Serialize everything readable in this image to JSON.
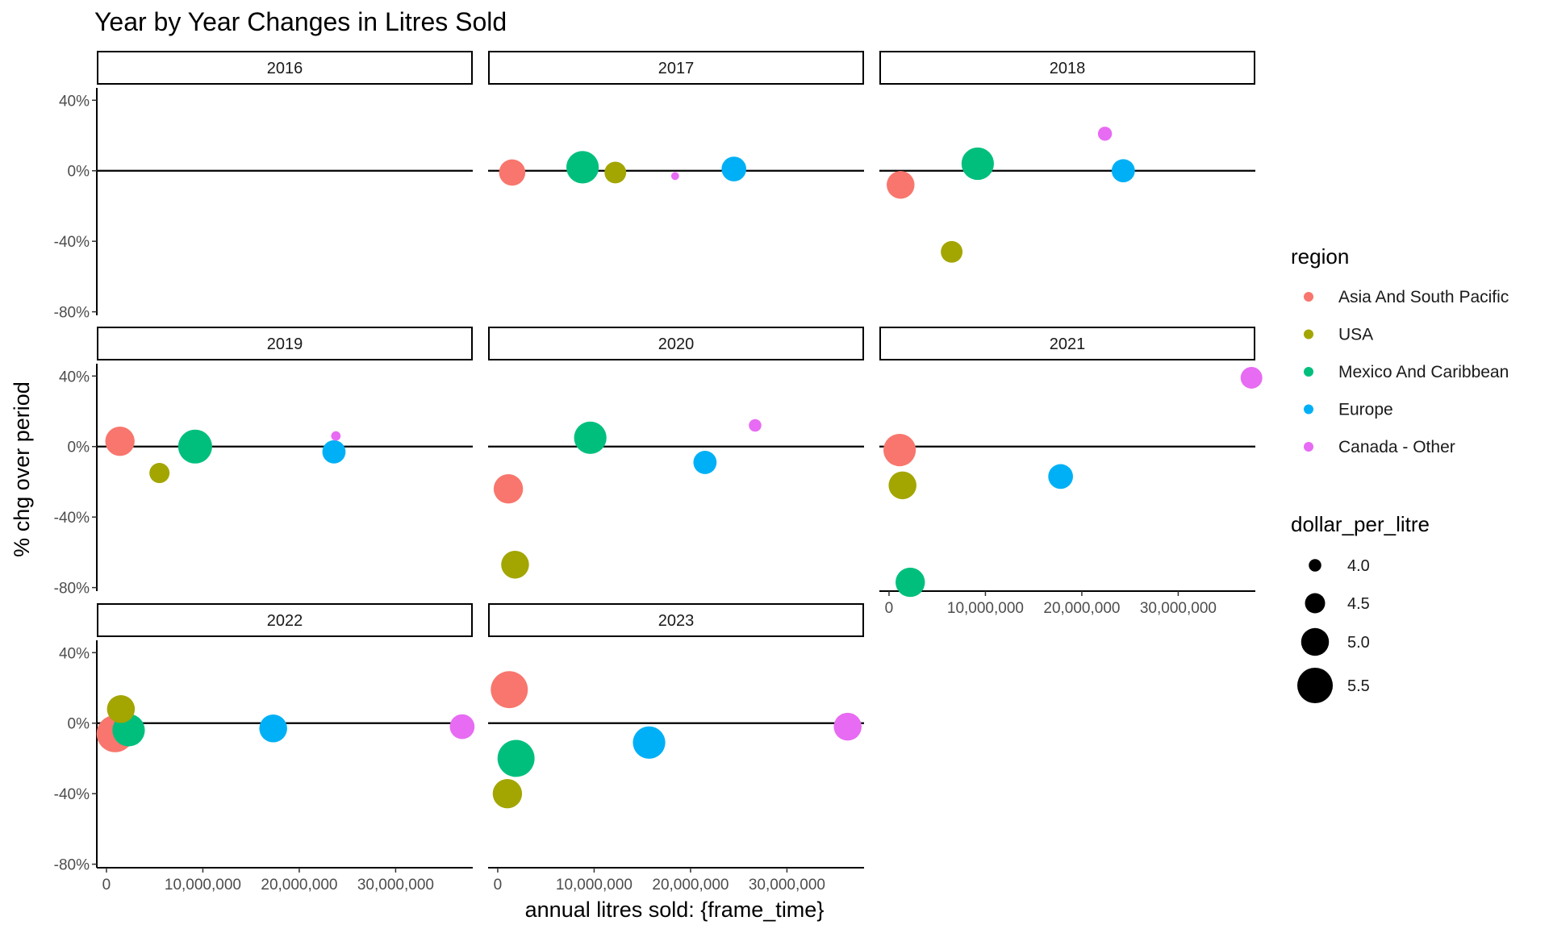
{
  "chart_data": {
    "type": "scatter",
    "title": "Year by Year Changes in Litres Sold",
    "xlabel": "annual litres sold: {frame_time}",
    "ylabel": "% chg over period",
    "x_tick_labels": [
      "0",
      "10,000,000",
      "20,000,000",
      "30,000,000"
    ],
    "y_tick_labels": [
      "40%",
      "0%",
      "-40%",
      "-80%"
    ],
    "xlim": [
      -1000000,
      38000000
    ],
    "ylim": [
      -82,
      47
    ],
    "legend": {
      "color_title": "region",
      "size_title": "dollar_per_litre",
      "regions": [
        {
          "name": "Asia And South Pacific",
          "color": "#F8766D"
        },
        {
          "name": "USA",
          "color": "#A3A500"
        },
        {
          "name": "Mexico And Caribbean",
          "color": "#00BF7D"
        },
        {
          "name": "Europe",
          "color": "#00B0F6"
        },
        {
          "name": "Canada - Other",
          "color": "#E76BF3"
        }
      ],
      "sizes": [
        {
          "label": "4.0",
          "value": 4.0
        },
        {
          "label": "4.5",
          "value": 4.5
        },
        {
          "label": "5.0",
          "value": 5.0
        },
        {
          "label": "5.5",
          "value": 5.5
        }
      ]
    },
    "panels": [
      {
        "year": "2016",
        "points": []
      },
      {
        "year": "2017",
        "points": [
          {
            "region": "Asia And South Pacific",
            "x": 1500000,
            "y": -1,
            "dollar_per_litre": 4.9
          },
          {
            "region": "Mexico And Caribbean",
            "x": 8800000,
            "y": 2,
            "dollar_per_litre": 5.3
          },
          {
            "region": "USA",
            "x": 12200000,
            "y": -1,
            "dollar_per_litre": 4.6
          },
          {
            "region": "Canada - Other",
            "x": 18400000,
            "y": -3,
            "dollar_per_litre": 3.7
          },
          {
            "region": "Europe",
            "x": 24500000,
            "y": 1,
            "dollar_per_litre": 4.8
          }
        ]
      },
      {
        "year": "2018",
        "points": [
          {
            "region": "Asia And South Pacific",
            "x": 1200000,
            "y": -8,
            "dollar_per_litre": 5.0
          },
          {
            "region": "USA",
            "x": 6500000,
            "y": -46,
            "dollar_per_litre": 4.6
          },
          {
            "region": "Mexico And Caribbean",
            "x": 9200000,
            "y": 4,
            "dollar_per_litre": 5.3
          },
          {
            "region": "Canada - Other",
            "x": 22400000,
            "y": 21,
            "dollar_per_litre": 4.1
          },
          {
            "region": "Europe",
            "x": 24300000,
            "y": 0,
            "dollar_per_litre": 4.7
          }
        ]
      },
      {
        "year": "2019",
        "points": [
          {
            "region": "Asia And South Pacific",
            "x": 1400000,
            "y": 3,
            "dollar_per_litre": 5.1
          },
          {
            "region": "USA",
            "x": 5500000,
            "y": -15,
            "dollar_per_litre": 4.5
          },
          {
            "region": "Mexico And Caribbean",
            "x": 9200000,
            "y": 0,
            "dollar_per_litre": 5.4
          },
          {
            "region": "Canada - Other",
            "x": 23800000,
            "y": 6,
            "dollar_per_litre": 3.8
          },
          {
            "region": "Europe",
            "x": 23600000,
            "y": -3,
            "dollar_per_litre": 4.7
          }
        ]
      },
      {
        "year": "2020",
        "points": [
          {
            "region": "Asia And South Pacific",
            "x": 1100000,
            "y": -24,
            "dollar_per_litre": 5.1
          },
          {
            "region": "USA",
            "x": 1800000,
            "y": -67,
            "dollar_per_litre": 5.0
          },
          {
            "region": "Mexico And Caribbean",
            "x": 9600000,
            "y": 5,
            "dollar_per_litre": 5.3
          },
          {
            "region": "Europe",
            "x": 21500000,
            "y": -9,
            "dollar_per_litre": 4.7
          },
          {
            "region": "Canada - Other",
            "x": 26700000,
            "y": 12,
            "dollar_per_litre": 4.0
          }
        ]
      },
      {
        "year": "2021",
        "points": [
          {
            "region": "Asia And South Pacific",
            "x": 1100000,
            "y": -2,
            "dollar_per_litre": 5.3
          },
          {
            "region": "USA",
            "x": 1400000,
            "y": -22,
            "dollar_per_litre": 5.0
          },
          {
            "region": "Mexico And Caribbean",
            "x": 2200000,
            "y": -77,
            "dollar_per_litre": 5.1
          },
          {
            "region": "Europe",
            "x": 17800000,
            "y": -17,
            "dollar_per_litre": 4.8
          },
          {
            "region": "Canada - Other",
            "x": 37600000,
            "y": 39,
            "dollar_per_litre": 4.6
          }
        ]
      },
      {
        "year": "2022",
        "points": [
          {
            "region": "Asia And South Pacific",
            "x": 900000,
            "y": -6,
            "dollar_per_litre": 5.6
          },
          {
            "region": "USA",
            "x": 1500000,
            "y": 8,
            "dollar_per_litre": 5.0
          },
          {
            "region": "Mexico And Caribbean",
            "x": 2300000,
            "y": -4,
            "dollar_per_litre": 5.3
          },
          {
            "region": "Europe",
            "x": 17300000,
            "y": -3,
            "dollar_per_litre": 5.0
          },
          {
            "region": "Canada - Other",
            "x": 36900000,
            "y": -2,
            "dollar_per_litre": 4.8
          }
        ]
      },
      {
        "year": "2023",
        "points": [
          {
            "region": "Asia And South Pacific",
            "x": 1200000,
            "y": 19,
            "dollar_per_litre": 5.6
          },
          {
            "region": "Mexico And Caribbean",
            "x": 1900000,
            "y": -20,
            "dollar_per_litre": 5.6
          },
          {
            "region": "USA",
            "x": 1000000,
            "y": -40,
            "dollar_per_litre": 5.1
          },
          {
            "region": "Europe",
            "x": 15700000,
            "y": -11,
            "dollar_per_litre": 5.3
          },
          {
            "region": "Canada - Other",
            "x": 36300000,
            "y": -2,
            "dollar_per_litre": 5.0
          }
        ]
      }
    ]
  }
}
